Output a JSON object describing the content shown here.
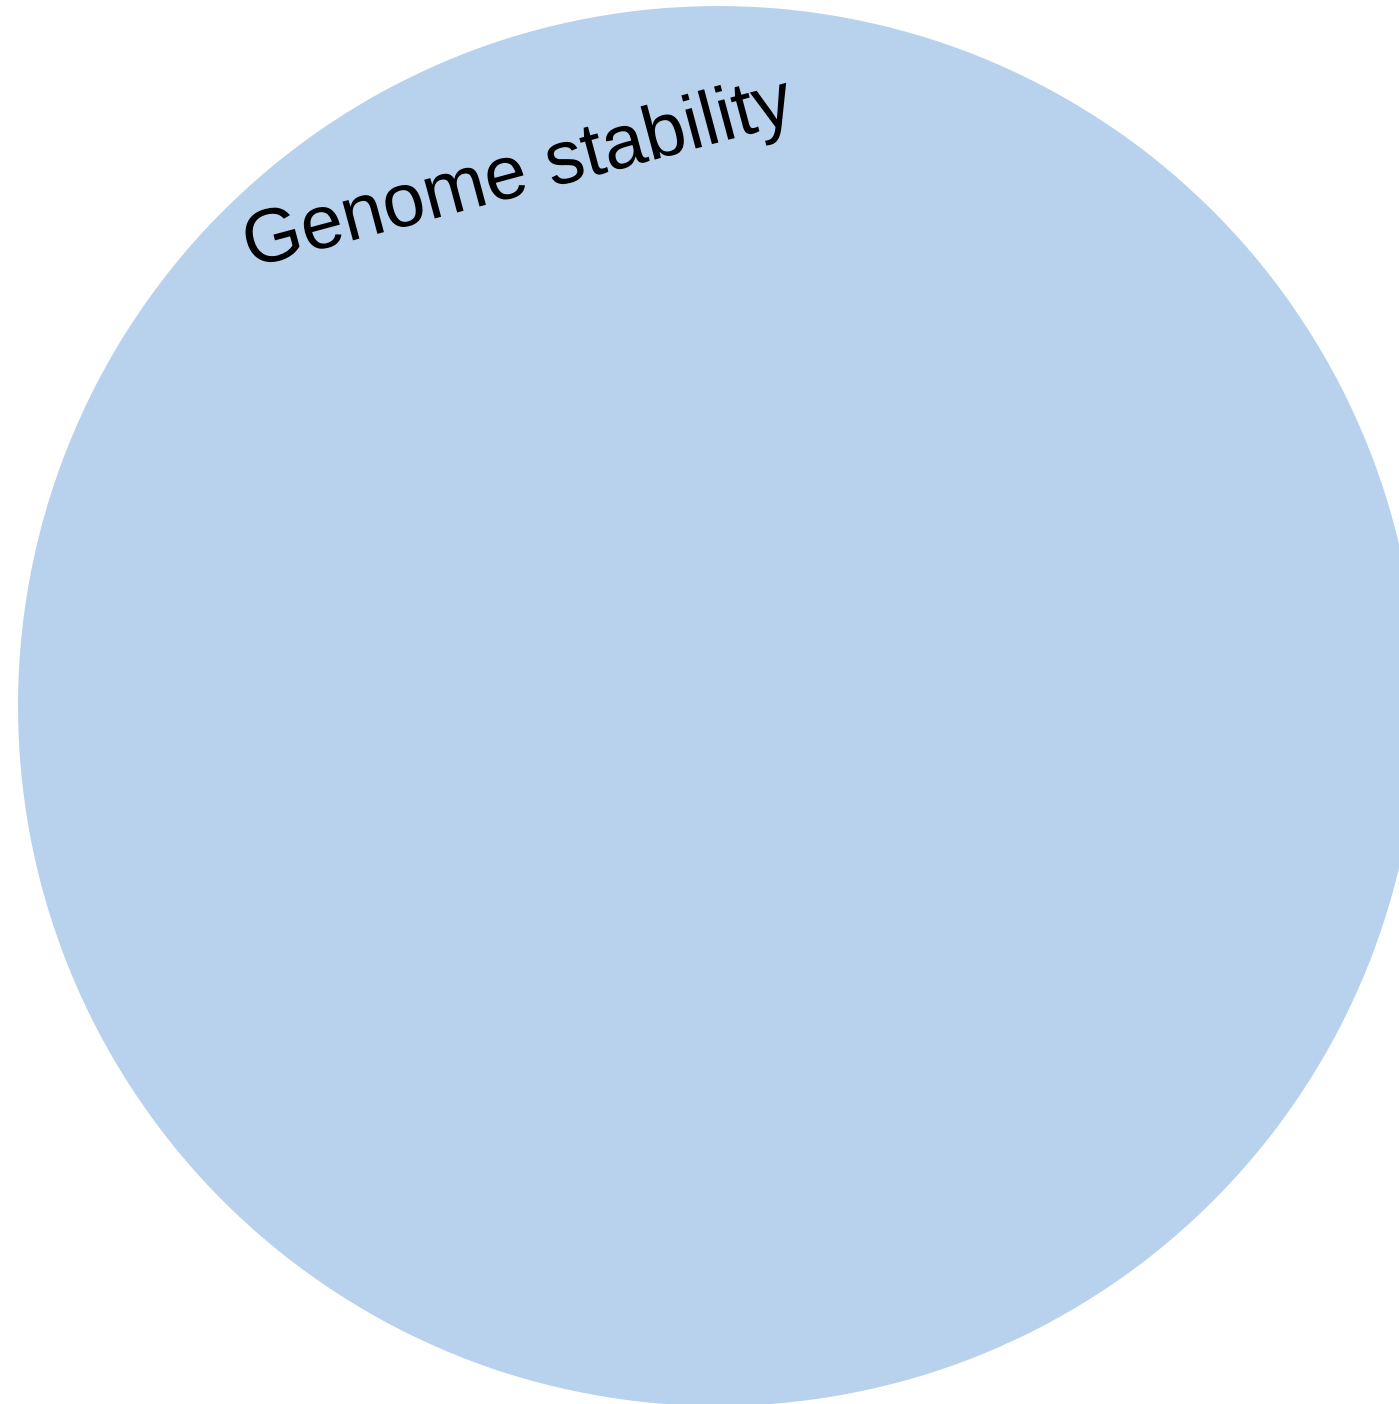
{
  "diagram": {
    "circle": {
      "label": "Genome stability",
      "fill_color": "#b8d2ee"
    }
  }
}
